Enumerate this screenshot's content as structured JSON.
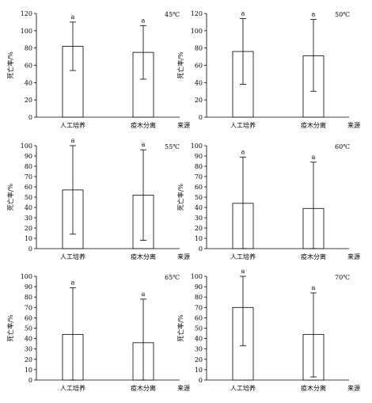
{
  "chart_data": [
    {
      "type": "bar",
      "temp_label": "45℃",
      "ylabel": "死亡率/%",
      "xlabel": "来源",
      "categories": [
        "人工培养",
        "疫木分离"
      ],
      "ylim": [
        0,
        120
      ],
      "yticks": [
        "0",
        "20",
        "40",
        "60",
        "80",
        "100",
        "120"
      ],
      "values": [
        82,
        75
      ],
      "err_low": [
        54,
        44
      ],
      "err_high": [
        110,
        106
      ],
      "sig_labels": [
        "a",
        "a"
      ],
      "grid": false
    },
    {
      "type": "bar",
      "temp_label": "50℃",
      "ylabel": "死亡率/%",
      "xlabel": "来源",
      "categories": [
        "人工培养",
        "疫木分离"
      ],
      "ylim": [
        0,
        120
      ],
      "yticks": [
        "0",
        "20",
        "40",
        "60",
        "80",
        "100",
        "120"
      ],
      "values": [
        76,
        71
      ],
      "err_low": [
        38,
        30
      ],
      "err_high": [
        114,
        113
      ],
      "sig_labels": [
        "a",
        "a"
      ],
      "grid": false
    },
    {
      "type": "bar",
      "temp_label": "55℃",
      "ylabel": "死亡率/%",
      "xlabel": "来源",
      "categories": [
        "人工培养",
        "疫木分离"
      ],
      "ylim": [
        0,
        100
      ],
      "yticks": [
        "0",
        "10",
        "20",
        "30",
        "40",
        "50",
        "60",
        "70",
        "80",
        "90",
        "100"
      ],
      "values": [
        57,
        52
      ],
      "err_low": [
        14,
        8
      ],
      "err_high": [
        100,
        96
      ],
      "sig_labels": [
        "a",
        "a"
      ],
      "grid": false
    },
    {
      "type": "bar",
      "temp_label": "60℃",
      "ylabel": "死亡率/%",
      "xlabel": "来源",
      "categories": [
        "人工培养",
        "疫木分离"
      ],
      "ylim": [
        0,
        100
      ],
      "yticks": [
        "0",
        "10",
        "20",
        "30",
        "40",
        "50",
        "60",
        "70",
        "80",
        "90",
        "100"
      ],
      "values": [
        44,
        39
      ],
      "err_low": [
        0,
        0
      ],
      "err_high": [
        89,
        84
      ],
      "sig_labels": [
        "a",
        "a"
      ],
      "grid": false
    },
    {
      "type": "bar",
      "temp_label": "65℃",
      "ylabel": "死亡率/%",
      "xlabel": "来源",
      "categories": [
        "人工培养",
        "疫木分离"
      ],
      "ylim": [
        0,
        100
      ],
      "yticks": [
        "0",
        "10",
        "20",
        "30",
        "40",
        "50",
        "60",
        "70",
        "80",
        "90",
        "100"
      ],
      "values": [
        44,
        36
      ],
      "err_low": [
        0,
        0
      ],
      "err_high": [
        89,
        78
      ],
      "sig_labels": [
        "a",
        "a"
      ],
      "grid": false
    },
    {
      "type": "bar",
      "temp_label": "70℃",
      "ylabel": "死亡率/%",
      "xlabel": "来源",
      "categories": [
        "人工培养",
        "疫木分离"
      ],
      "ylim": [
        0,
        100
      ],
      "yticks": [
        "0",
        "10",
        "20",
        "30",
        "40",
        "50",
        "60",
        "70",
        "80",
        "90",
        "100"
      ],
      "values": [
        70,
        44
      ],
      "err_low": [
        33,
        3
      ],
      "err_high": [
        100,
        84
      ],
      "sig_labels": [
        "a",
        "a"
      ],
      "grid": false
    }
  ]
}
